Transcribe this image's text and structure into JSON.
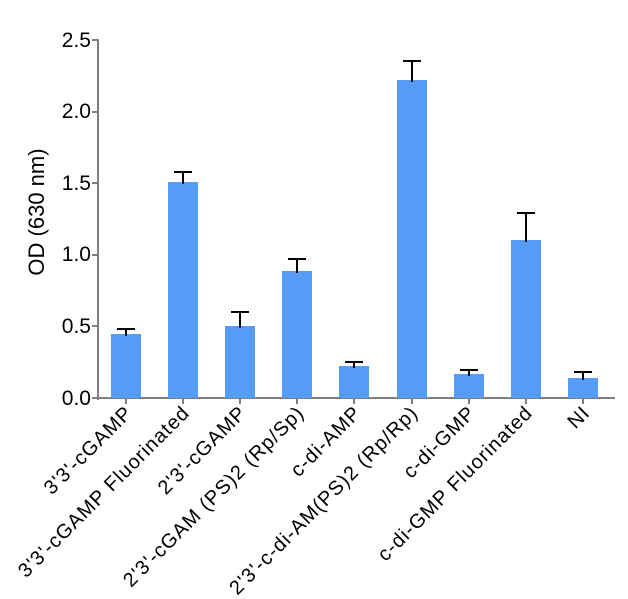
{
  "figure": {
    "background": "#ffffff",
    "bar_color": "#569CF6",
    "axis_color": "#7f7f7f",
    "error_color": "#000000",
    "text_color": "#000000"
  },
  "chart_data": {
    "type": "bar",
    "title": "",
    "xlabel": "",
    "ylabel": "OD (630 nm)",
    "ylim": [
      0,
      2.5
    ],
    "ytick_labels": [
      "0.0",
      "0.5",
      "1.0",
      "1.5",
      "2.0",
      "2.5"
    ],
    "grid": false,
    "legend_position": "none",
    "categories": [
      "3'3'-cGAMP",
      "3'3'-cGAMP Fluorinated",
      "2'3'-cGAMP",
      "2'3'-cGAM (PS)2 (Rp/Sp)",
      "c-di-AMP",
      "2'3'-c-di-AM(PS)2 (Rp/Rp)",
      "c-di-GMP",
      "c-di-GMP Fluorinated",
      "NI"
    ],
    "values": [
      0.45,
      1.51,
      0.5,
      0.89,
      0.22,
      2.22,
      0.17,
      1.1,
      0.14
    ],
    "errors": [
      0.03,
      0.07,
      0.1,
      0.08,
      0.03,
      0.13,
      0.025,
      0.19,
      0.04
    ]
  }
}
